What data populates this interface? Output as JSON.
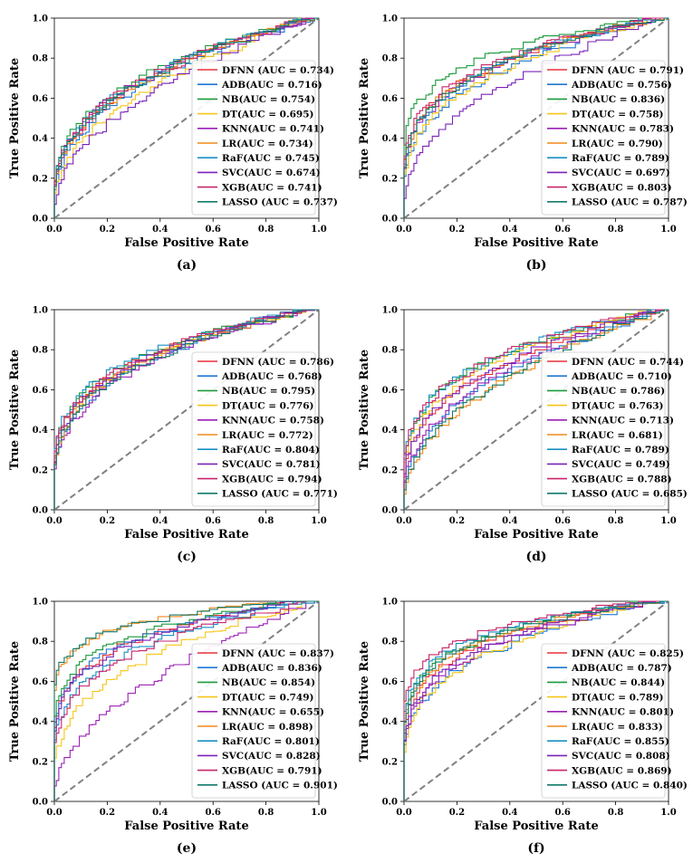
{
  "figure": {
    "common": {
      "type": "line",
      "xlabel": "False Positive Rate",
      "ylabel": "True Positive Rate",
      "xlim": [
        0,
        1
      ],
      "ylim": [
        0,
        1
      ],
      "x_ticks": [
        "0.0",
        "0.2",
        "0.4",
        "0.6",
        "0.8",
        "1.0"
      ],
      "y_ticks": [
        "0.0",
        "0.2",
        "0.4",
        "0.6",
        "0.8",
        "1.0"
      ],
      "legend_position": "lower-right",
      "diagonal": {
        "style": "dashed",
        "color": "#808080"
      }
    },
    "series_colors": {
      "DFNN": "#e8323c",
      "ADB": "#1f77d0",
      "NB": "#1a9a3a",
      "DT": "#f5c518",
      "KNN": "#9b1fb5",
      "LR": "#f08a1c",
      "RaF": "#1a8fc4",
      "SVC": "#7a22b8",
      "XGB": "#c8246a",
      "LASSO": "#117a6a"
    }
  },
  "chart_data": [
    {
      "panel_label": "(a)",
      "series": [
        {
          "name": "DFNN",
          "legend": "DFNN (AUC = 0.734)",
          "auc": 0.734
        },
        {
          "name": "ADB",
          "legend": "ADB(AUC = 0.716)",
          "auc": 0.716
        },
        {
          "name": "NB",
          "legend": "NB(AUC = 0.754)",
          "auc": 0.754
        },
        {
          "name": "DT",
          "legend": "DT(AUC = 0.695)",
          "auc": 0.695
        },
        {
          "name": "KNN",
          "legend": "KNN(AUC = 0.741)",
          "auc": 0.741
        },
        {
          "name": "LR",
          "legend": "LR(AUC = 0.734)",
          "auc": 0.734
        },
        {
          "name": "RaF",
          "legend": "RaF(AUC = 0.745)",
          "auc": 0.745
        },
        {
          "name": "SVC",
          "legend": "SVC(AUC = 0.674)",
          "auc": 0.674
        },
        {
          "name": "XGB",
          "legend": "XGB(AUC = 0.741)",
          "auc": 0.741
        },
        {
          "name": "LASSO",
          "legend": "LASSO (AUC = 0.737)",
          "auc": 0.737
        }
      ]
    },
    {
      "panel_label": "(b)",
      "series": [
        {
          "name": "DFNN",
          "legend": "DFNN (AUC = 0.791)",
          "auc": 0.791
        },
        {
          "name": "ADB",
          "legend": "ADB(AUC = 0.756)",
          "auc": 0.756
        },
        {
          "name": "NB",
          "legend": "NB(AUC = 0.836)",
          "auc": 0.836
        },
        {
          "name": "DT",
          "legend": "DT(AUC = 0.758)",
          "auc": 0.758
        },
        {
          "name": "KNN",
          "legend": "KNN(AUC = 0.783)",
          "auc": 0.783
        },
        {
          "name": "LR",
          "legend": "LR(AUC = 0.790)",
          "auc": 0.79
        },
        {
          "name": "RaF",
          "legend": "RaF(AUC = 0.789)",
          "auc": 0.789
        },
        {
          "name": "SVC",
          "legend": "SVC(AUC = 0.697)",
          "auc": 0.697
        },
        {
          "name": "XGB",
          "legend": "XGB(AUC = 0.803)",
          "auc": 0.803
        },
        {
          "name": "LASSO",
          "legend": "LASSO (AUC = 0.787)",
          "auc": 0.787
        }
      ]
    },
    {
      "panel_label": "(c)",
      "series": [
        {
          "name": "DFNN",
          "legend": "DFNN (AUC = 0.786)",
          "auc": 0.786
        },
        {
          "name": "ADB",
          "legend": "ADB(AUC = 0.768)",
          "auc": 0.768
        },
        {
          "name": "NB",
          "legend": "NB(AUC = 0.795)",
          "auc": 0.795
        },
        {
          "name": "DT",
          "legend": "DT(AUC = 0.776)",
          "auc": 0.776
        },
        {
          "name": "KNN",
          "legend": "KNN(AUC = 0.758)",
          "auc": 0.758
        },
        {
          "name": "LR",
          "legend": "LR(AUC = 0.772)",
          "auc": 0.772
        },
        {
          "name": "RaF",
          "legend": "RaF(AUC = 0.804)",
          "auc": 0.804
        },
        {
          "name": "SVC",
          "legend": "SVC(AUC = 0.781)",
          "auc": 0.781
        },
        {
          "name": "XGB",
          "legend": "XGB(AUC = 0.794)",
          "auc": 0.794
        },
        {
          "name": "LASSO",
          "legend": "LASSO (AUC = 0.771)",
          "auc": 0.771
        }
      ]
    },
    {
      "panel_label": "(d)",
      "series": [
        {
          "name": "DFNN",
          "legend": "DFNN (AUC = 0.744)",
          "auc": 0.744
        },
        {
          "name": "ADB",
          "legend": "ADB(AUC = 0.710)",
          "auc": 0.71
        },
        {
          "name": "NB",
          "legend": "NB(AUC = 0.786)",
          "auc": 0.786
        },
        {
          "name": "DT",
          "legend": "DT(AUC = 0.763)",
          "auc": 0.763
        },
        {
          "name": "KNN",
          "legend": "KNN(AUC = 0.713)",
          "auc": 0.713
        },
        {
          "name": "LR",
          "legend": "LR(AUC = 0.681)",
          "auc": 0.681
        },
        {
          "name": "RaF",
          "legend": "RaF(AUC = 0.789)",
          "auc": 0.789
        },
        {
          "name": "SVC",
          "legend": "SVC(AUC = 0.749)",
          "auc": 0.749
        },
        {
          "name": "XGB",
          "legend": "XGB(AUC = 0.788)",
          "auc": 0.788
        },
        {
          "name": "LASSO",
          "legend": "LASSO (AUC = 0.685)",
          "auc": 0.685
        }
      ]
    },
    {
      "panel_label": "(e)",
      "series": [
        {
          "name": "DFNN",
          "legend": "DFNN (AUC = 0.837)",
          "auc": 0.837
        },
        {
          "name": "ADB",
          "legend": "ADB(AUC = 0.836)",
          "auc": 0.836
        },
        {
          "name": "NB",
          "legend": "NB(AUC = 0.854)",
          "auc": 0.854
        },
        {
          "name": "DT",
          "legend": "DT(AUC = 0.749)",
          "auc": 0.749
        },
        {
          "name": "KNN",
          "legend": "KNN(AUC = 0.655)",
          "auc": 0.655
        },
        {
          "name": "LR",
          "legend": "LR(AUC = 0.898)",
          "auc": 0.898
        },
        {
          "name": "RaF",
          "legend": "RaF(AUC = 0.801)",
          "auc": 0.801
        },
        {
          "name": "SVC",
          "legend": "SVC(AUC = 0.828)",
          "auc": 0.828
        },
        {
          "name": "XGB",
          "legend": "XGB(AUC = 0.791)",
          "auc": 0.791
        },
        {
          "name": "LASSO",
          "legend": "LASSO (AUC = 0.901)",
          "auc": 0.901
        }
      ]
    },
    {
      "panel_label": "(f)",
      "series": [
        {
          "name": "DFNN",
          "legend": "DFNN (AUC = 0.825)",
          "auc": 0.825
        },
        {
          "name": "ADB",
          "legend": "ADB(AUC = 0.787)",
          "auc": 0.787
        },
        {
          "name": "NB",
          "legend": "NB(AUC = 0.844)",
          "auc": 0.844
        },
        {
          "name": "DT",
          "legend": "DT(AUC = 0.789)",
          "auc": 0.789
        },
        {
          "name": "KNN",
          "legend": "KNN(AUC = 0.801)",
          "auc": 0.801
        },
        {
          "name": "LR",
          "legend": "LR(AUC = 0.833)",
          "auc": 0.833
        },
        {
          "name": "RaF",
          "legend": "RaF(AUC = 0.855)",
          "auc": 0.855
        },
        {
          "name": "SVC",
          "legend": "SVC(AUC = 0.808)",
          "auc": 0.808
        },
        {
          "name": "XGB",
          "legend": "XGB(AUC = 0.869)",
          "auc": 0.869
        },
        {
          "name": "LASSO",
          "legend": "LASSO (AUC = 0.840)",
          "auc": 0.84
        }
      ]
    }
  ]
}
